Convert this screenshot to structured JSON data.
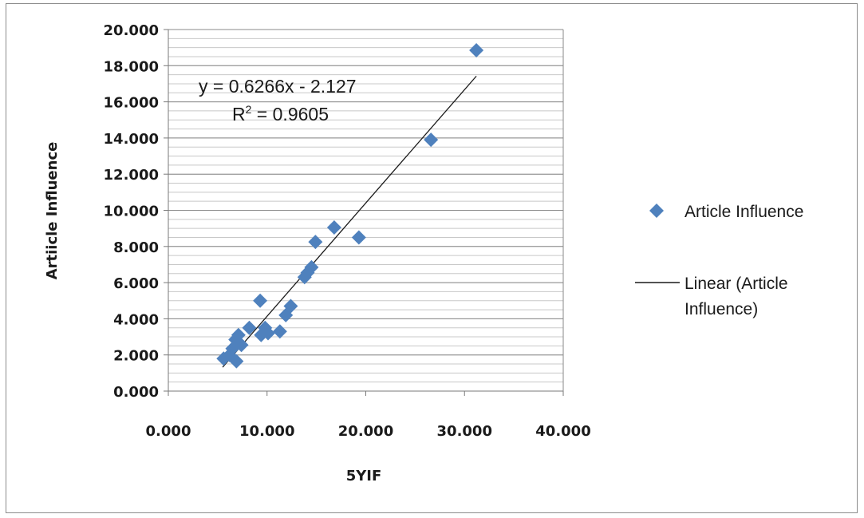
{
  "chart_data": {
    "type": "scatter",
    "title": "",
    "xlabel": "5YIF",
    "ylabel": "Artiicle Influence",
    "xlim": [
      0,
      40
    ],
    "ylim": [
      0,
      20
    ],
    "x_ticks": [
      "0.000",
      "10.000",
      "20.000",
      "30.000",
      "40.000"
    ],
    "y_ticks": [
      "0.000",
      "2.000",
      "4.000",
      "6.000",
      "8.000",
      "10.000",
      "12.000",
      "14.000",
      "16.000",
      "18.000",
      "20.000"
    ],
    "grid": "horizontal",
    "legend_position": "right",
    "series": [
      {
        "name": "Article Influence",
        "marker": "diamond",
        "color": "#4f81bd",
        "points": [
          [
            31.2,
            18.85
          ],
          [
            26.6,
            13.9
          ],
          [
            16.8,
            9.05
          ],
          [
            19.3,
            8.5
          ],
          [
            14.9,
            8.25
          ],
          [
            14.5,
            6.85
          ],
          [
            14.1,
            6.55
          ],
          [
            13.8,
            6.3
          ],
          [
            9.3,
            5.0
          ],
          [
            12.4,
            4.7
          ],
          [
            11.9,
            4.2
          ],
          [
            8.2,
            3.5
          ],
          [
            9.8,
            3.5
          ],
          [
            10.1,
            3.2
          ],
          [
            9.4,
            3.1
          ],
          [
            11.3,
            3.3
          ],
          [
            7.1,
            3.1
          ],
          [
            6.8,
            2.85
          ],
          [
            7.4,
            2.55
          ],
          [
            6.5,
            2.35
          ],
          [
            6.2,
            2.0
          ],
          [
            5.6,
            1.8
          ],
          [
            6.9,
            1.65
          ]
        ]
      }
    ],
    "trendline": {
      "name": "Linear (Article Influence)",
      "slope": 0.6266,
      "intercept": -2.127,
      "x_range": [
        5.5,
        31.2
      ],
      "color": "#1a1a1a"
    },
    "annotations": {
      "equation": "y = 0.6266x - 2.127",
      "r2_prefix": "R",
      "r2_sup": "2",
      "r2_suffix": " = 0.9605"
    },
    "legend": {
      "line1": "Article Influence",
      "line2a": "Linear (Article",
      "line2b": "Influence)"
    }
  }
}
